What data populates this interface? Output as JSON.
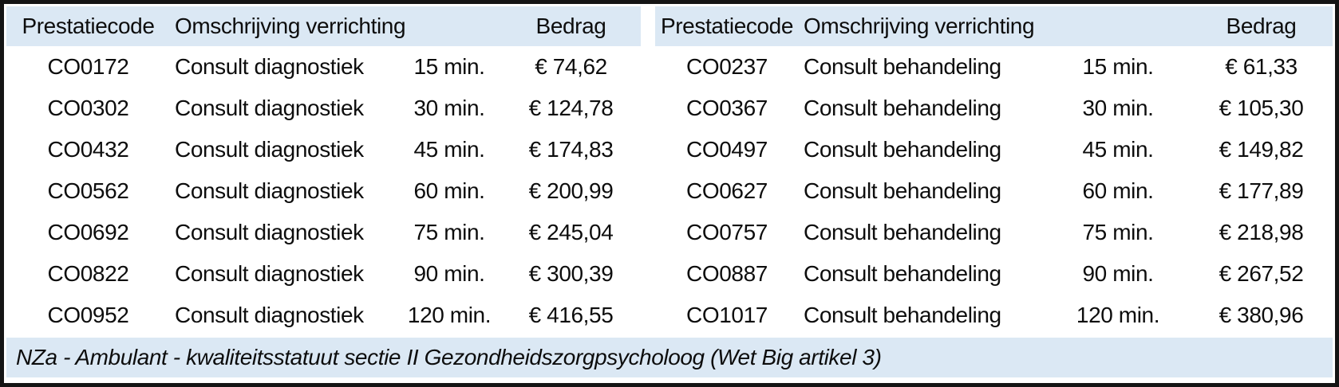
{
  "tables": {
    "left": {
      "headers": {
        "code": "Prestatiecode",
        "description": "Omschrijving verrichting",
        "amount": "Bedrag"
      },
      "rows": [
        {
          "code": "CO0172",
          "description": "Consult diagnostiek",
          "duration": "15 min.",
          "amount": "€ 74,62"
        },
        {
          "code": "CO0302",
          "description": "Consult diagnostiek",
          "duration": "30 min.",
          "amount": "€ 124,78"
        },
        {
          "code": "CO0432",
          "description": "Consult diagnostiek",
          "duration": "45 min.",
          "amount": "€ 174,83"
        },
        {
          "code": "CO0562",
          "description": "Consult diagnostiek",
          "duration": "60 min.",
          "amount": "€ 200,99"
        },
        {
          "code": "CO0692",
          "description": "Consult diagnostiek",
          "duration": "75 min.",
          "amount": "€ 245,04"
        },
        {
          "code": "CO0822",
          "description": "Consult diagnostiek",
          "duration": "90 min.",
          "amount": "€ 300,39"
        },
        {
          "code": "CO0952",
          "description": "Consult diagnostiek",
          "duration": "120 min.",
          "amount": "€ 416,55"
        }
      ]
    },
    "right": {
      "headers": {
        "code": "Prestatiecode",
        "description": "Omschrijving verrichting",
        "amount": "Bedrag"
      },
      "rows": [
        {
          "code": "CO0237",
          "description": "Consult behandeling",
          "duration": "15 min.",
          "amount": "€ 61,33"
        },
        {
          "code": "CO0367",
          "description": "Consult behandeling",
          "duration": "30 min.",
          "amount": "€ 105,30"
        },
        {
          "code": "CO0497",
          "description": "Consult behandeling",
          "duration": "45 min.",
          "amount": "€ 149,82"
        },
        {
          "code": "CO0627",
          "description": "Consult behandeling",
          "duration": "60 min.",
          "amount": "€ 177,89"
        },
        {
          "code": "CO0757",
          "description": "Consult behandeling",
          "duration": "75 min.",
          "amount": "€ 218,98"
        },
        {
          "code": "CO0887",
          "description": "Consult behandeling",
          "duration": "90 min.",
          "amount": "€ 267,52"
        },
        {
          "code": "CO1017",
          "description": "Consult behandeling",
          "duration": "120 min.",
          "amount": "€ 380,96"
        }
      ]
    }
  },
  "footer": {
    "text": "NZa - Ambulant - kwaliteitsstatuut sectie II Gezondheidszorgpsycholoog (Wet Big artikel 3)"
  },
  "colors": {
    "band_blue": "#dbe8f4",
    "border_black": "#141414",
    "text": "#0d0d0d",
    "row_background": "#ffffff"
  }
}
